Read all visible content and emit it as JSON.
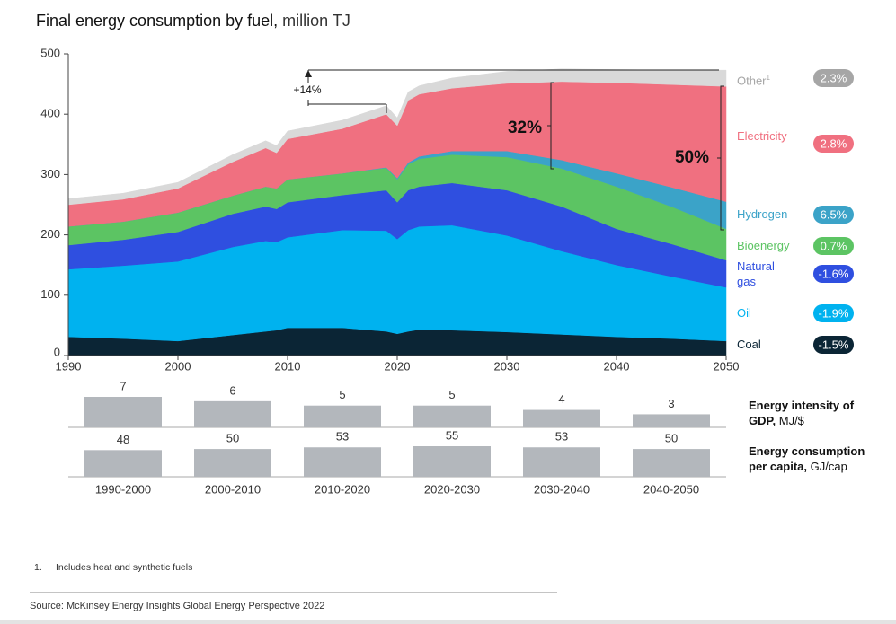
{
  "chart_data": [
    {
      "type": "area",
      "title": "Final energy consumption by fuel,",
      "title_unit": "million TJ",
      "x": [
        1990,
        1995,
        2000,
        2005,
        2008,
        2009,
        2010,
        2015,
        2019,
        2020,
        2021,
        2022,
        2025,
        2030,
        2035,
        2040,
        2045,
        2050
      ],
      "xlim": [
        1990,
        2050
      ],
      "xticks": [
        1990,
        2000,
        2010,
        2020,
        2030,
        2040,
        2050
      ],
      "ylim": [
        0,
        500
      ],
      "yticks": [
        0,
        100,
        200,
        300,
        400,
        500
      ],
      "series": [
        {
          "name": "Coal",
          "color": "#0b2535",
          "badge": "-1.5%",
          "values": [
            31,
            28,
            24,
            34,
            40,
            42,
            46,
            46,
            40,
            36,
            40,
            43,
            42,
            39,
            35,
            31,
            28,
            24
          ]
        },
        {
          "name": "Oil",
          "color": "#00b2ef",
          "badge": "-1.9%",
          "values": [
            112,
            121,
            132,
            146,
            150,
            146,
            150,
            162,
            167,
            157,
            168,
            171,
            174,
            160,
            138,
            119,
            103,
            89
          ]
        },
        {
          "name": "Natural gas",
          "color": "#2f4fe0",
          "badge": "-1.6%",
          "values": [
            40,
            43,
            49,
            55,
            57,
            55,
            58,
            58,
            67,
            61,
            66,
            66,
            70,
            75,
            74,
            60,
            54,
            45
          ]
        },
        {
          "name": "Bioenergy",
          "color": "#5cc463",
          "badge": "0.7%",
          "values": [
            31,
            30,
            32,
            30,
            33,
            34,
            38,
            36,
            37,
            38,
            43,
            46,
            47,
            55,
            63,
            70,
            62,
            52
          ]
        },
        {
          "name": "Hydrogen",
          "color": "#3ba3c8",
          "badge": "6.5%",
          "values": [
            0,
            0,
            0,
            0,
            0,
            0,
            0,
            0,
            1,
            2,
            3,
            4,
            6,
            10,
            14,
            22,
            32,
            45
          ]
        },
        {
          "name": "Electricity",
          "color": "#f07080",
          "badge": "2.8%",
          "values": [
            36,
            37,
            40,
            56,
            64,
            59,
            67,
            74,
            88,
            87,
            103,
            103,
            104,
            112,
            130,
            150,
            170,
            191
          ]
        },
        {
          "name": "Other",
          "name_note": "1",
          "color": "#d9d9d9",
          "badge_color": "#a6a6a6",
          "badge": "2.3%",
          "values": [
            10,
            10,
            10,
            12,
            12,
            12,
            13,
            14,
            14,
            13,
            14,
            14,
            17,
            20,
            21,
            22,
            24,
            27
          ]
        }
      ],
      "annotations": [
        "+14%",
        "32%",
        "50%"
      ]
    },
    {
      "type": "bar",
      "categories": [
        "1990-2000",
        "2000-2010",
        "2010-2020",
        "2020-2030",
        "2030-2040",
        "2040-2050"
      ],
      "color": "#b3b7bc",
      "series": [
        {
          "name": "Energy intensity of GDP,",
          "unit": "MJ/$",
          "values": [
            7,
            6,
            5,
            5,
            4,
            3
          ]
        },
        {
          "name": "Energy consumption per capita,",
          "unit": "GJ/cap",
          "values": [
            48,
            50,
            53,
            55,
            53,
            50
          ]
        }
      ]
    }
  ],
  "footnote": {
    "marker": "1.",
    "text": "Includes heat and synthetic fuels"
  },
  "source": "Source: McKinsey Energy Insights Global Energy Perspective 2022"
}
